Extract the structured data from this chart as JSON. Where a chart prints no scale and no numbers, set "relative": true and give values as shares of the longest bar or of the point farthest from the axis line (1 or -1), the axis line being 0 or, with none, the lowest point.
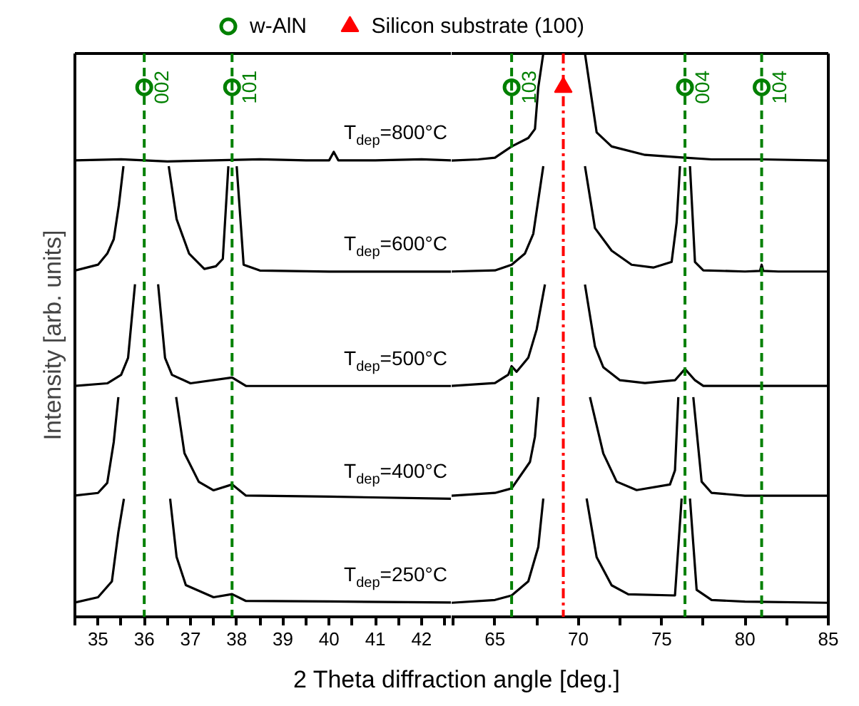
{
  "chart_data": [
    {
      "type": "line",
      "relative": true,
      "ylabel": "Intensity [arb. units]",
      "xlabel": "2 Theta diffraction angle [deg.]",
      "tick_labels": "x",
      "xlim": [
        34.5,
        42.65
      ],
      "xticks": [
        {
          "value": 34.5,
          "label": null
        },
        35,
        {
          "value": 35.5,
          "label": null
        },
        36,
        {
          "value": 36.5,
          "label": null
        },
        37,
        {
          "value": 37.5,
          "label": null
        },
        38,
        {
          "value": 38.5,
          "label": null
        },
        39,
        {
          "value": 39.5,
          "label": null
        },
        40,
        {
          "value": 40.5,
          "label": null
        },
        41,
        {
          "value": 41.5,
          "label": null
        },
        42,
        {
          "value": 42.5,
          "label": null
        }
      ],
      "series": [
        {
          "name": "T$_{dep}$=800°C",
          "color": "#000000",
          "x": [
            34.5,
            35.5,
            36.5,
            37.5,
            38.5,
            39.5,
            40.0,
            40.1,
            40.2,
            41.0,
            42.0,
            42.65
          ],
          "values": [
            0.862,
            0.864,
            0.86,
            0.862,
            0.864,
            0.862,
            0.862,
            0.878,
            0.862,
            0.862,
            0.864,
            0.862
          ]
        },
        {
          "name": "T$_{dep}$=600°C",
          "color": "#000000",
          "x": [
            34.5,
            35.0,
            35.2,
            35.34,
            35.45,
            35.55,
            36.0,
            36.53,
            36.7,
            36.97,
            37.3,
            37.55,
            37.7,
            37.82,
            37.9,
            38.0,
            38.15,
            38.5,
            40.0,
            42.65
          ],
          "values": [
            0.654,
            0.665,
            0.686,
            0.713,
            0.777,
            0.851,
            null,
            0.851,
            0.751,
            0.686,
            0.657,
            0.662,
            0.676,
            0.851,
            null,
            0.851,
            0.665,
            0.654,
            0.652,
            0.652
          ]
        },
        {
          "name": "T$_{dep}$=500°C",
          "color": "#000000",
          "x": [
            34.5,
            35.2,
            35.5,
            35.65,
            35.8,
            36.05,
            36.3,
            36.45,
            36.6,
            37.0,
            37.9,
            38.2,
            40.0,
            42.65
          ],
          "values": [
            0.436,
            0.441,
            0.457,
            0.489,
            0.628,
            null,
            0.628,
            0.489,
            0.457,
            0.441,
            0.452,
            0.436,
            0.436,
            0.436
          ]
        },
        {
          "name": "T$_{dep}$=400°C",
          "color": "#000000",
          "x": [
            34.5,
            35.0,
            35.2,
            35.34,
            35.44,
            36.0,
            36.69,
            36.87,
            37.18,
            37.5,
            37.9,
            38.2,
            40.0,
            42.65
          ],
          "values": [
            0.229,
            0.234,
            0.253,
            0.33,
            0.415,
            null,
            0.415,
            0.309,
            0.255,
            0.239,
            0.25,
            0.229,
            0.227,
            0.223
          ]
        },
        {
          "name": "T$_{dep}$=250°C",
          "color": "#000000",
          "x": [
            34.5,
            35.0,
            35.3,
            35.44,
            35.56,
            36.1,
            36.56,
            36.7,
            36.9,
            37.5,
            37.9,
            38.2,
            40.0,
            42.65
          ],
          "values": [
            0.027,
            0.037,
            0.067,
            0.16,
            0.223,
            null,
            0.223,
            0.113,
            0.06,
            0.037,
            0.043,
            0.03,
            0.029,
            0.027
          ]
        },
        {
          "type": "scatter",
          "marker": "circle",
          "color": "#008000",
          "x": [
            36.0,
            37.9
          ],
          "values": [
            1.0,
            1.0
          ]
        }
      ],
      "ref_lines": [
        {
          "axis": "x",
          "value": 36.0,
          "color": "#008000",
          "line_style": "dashed"
        },
        {
          "axis": "x",
          "value": 37.9,
          "color": "#008000",
          "line_style": "dashed"
        }
      ],
      "annotations": [
        {
          "text": "002",
          "x": 36.0,
          "y": 1.0
        },
        {
          "text": "101",
          "x": 37.9,
          "y": 1.0
        }
      ]
    },
    {
      "type": "line",
      "relative": true,
      "tick_labels": "x",
      "legend": "top",
      "xlim": [
        62.4,
        85
      ],
      "xticks": [
        {
          "value": 62.5,
          "label": null
        },
        65,
        {
          "value": 67.5,
          "label": null
        },
        70,
        {
          "value": 72.5,
          "label": null
        },
        75,
        {
          "value": 77.5,
          "label": null
        },
        80,
        {
          "value": 82.5,
          "label": null
        },
        85
      ],
      "series": [
        {
          "color": "#000000",
          "x": [
            62.4,
            64.0,
            65.0,
            66.0,
            67.0,
            67.4,
            67.6,
            67.9,
            69.1,
            70.4,
            71.1,
            72.0,
            74.0,
            76.4,
            78.0,
            81.0,
            85.0
          ],
          "values": [
            0.81,
            0.812,
            0.815,
            0.835,
            0.85,
            0.866,
            0.94,
            1.0,
            null,
            1.0,
            0.86,
            0.835,
            0.82,
            0.815,
            0.812,
            0.812,
            0.81
          ]
        },
        {
          "color": "#000000",
          "x": [
            62.4,
            65.0,
            66.0,
            66.8,
            67.3,
            67.6,
            67.9,
            69.1,
            70.4,
            71.0,
            72.0,
            73.2,
            74.5,
            75.6,
            75.9,
            76.1,
            76.4,
            76.7,
            77.0,
            77.5,
            80.0,
            80.9,
            81.0,
            81.1,
            82.0,
            85.0
          ],
          "values": [
            0.613,
            0.615,
            0.625,
            0.645,
            0.68,
            0.74,
            0.8,
            null,
            0.8,
            0.69,
            0.65,
            0.625,
            0.62,
            0.63,
            0.7,
            0.8,
            null,
            0.8,
            0.63,
            0.615,
            0.613,
            0.614,
            0.625,
            0.614,
            0.613,
            0.613
          ]
        },
        {
          "color": "#000000",
          "x": [
            62.4,
            65.0,
            65.8,
            66.0,
            66.3,
            67.0,
            67.5,
            68.0,
            69.1,
            70.4,
            71.0,
            71.5,
            72.5,
            74.0,
            75.8,
            76.4,
            77.0,
            77.5,
            80.0,
            85.0
          ],
          "values": [
            0.41,
            0.415,
            0.43,
            0.445,
            0.435,
            0.46,
            0.51,
            0.59,
            null,
            0.59,
            0.48,
            0.443,
            0.42,
            0.415,
            0.42,
            0.44,
            0.42,
            0.41,
            0.41,
            0.41
          ]
        },
        {
          "color": "#000000",
          "x": [
            62.4,
            65.0,
            66.0,
            67.1,
            67.4,
            67.6,
            69.1,
            70.7,
            71.5,
            72.3,
            73.5,
            75.5,
            75.8,
            76.0,
            76.5,
            76.9,
            77.4,
            78.0,
            80.0,
            85.0
          ],
          "values": [
            0.215,
            0.22,
            0.228,
            0.275,
            0.32,
            0.39,
            null,
            0.39,
            0.29,
            0.24,
            0.225,
            0.235,
            0.26,
            0.39,
            null,
            0.39,
            0.24,
            0.22,
            0.215,
            0.215
          ]
        },
        {
          "color": "#000000",
          "x": [
            62.4,
            65.0,
            66.0,
            67.0,
            67.6,
            67.9,
            69.1,
            70.5,
            71.1,
            72.0,
            73.0,
            75.8,
            76.2,
            76.45,
            76.7,
            77.1,
            78.0,
            80.0,
            85.0
          ],
          "values": [
            0.025,
            0.03,
            0.038,
            0.063,
            0.124,
            0.21,
            null,
            0.21,
            0.106,
            0.056,
            0.04,
            0.038,
            0.21,
            null,
            0.21,
            0.048,
            0.03,
            0.027,
            0.025
          ]
        },
        {
          "type": "scatter",
          "marker": "circle",
          "name": "w-AlN",
          "color": "#008000",
          "x": [
            66.0,
            76.4,
            81.0
          ],
          "values": [
            0.94,
            0.94,
            0.94
          ]
        },
        {
          "type": "scatter",
          "marker": "triangle",
          "name": "Silicon substrate (100)",
          "color": "#ff0000",
          "x": [
            69.1
          ],
          "values": [
            0.94
          ]
        }
      ],
      "ref_lines": [
        {
          "axis": "x",
          "value": 66.0,
          "color": "#008000",
          "line_style": "dashed"
        },
        {
          "axis": "x",
          "value": 69.1,
          "color": "#ff0000",
          "line_style": "dashdot"
        },
        {
          "axis": "x",
          "value": 76.4,
          "color": "#008000",
          "line_style": "dashed"
        },
        {
          "axis": "x",
          "value": 81.0,
          "color": "#008000",
          "line_style": "dashed"
        }
      ],
      "annotations": [
        {
          "text": "103",
          "x": 66.0,
          "y": 0.94
        },
        {
          "text": "004",
          "x": 76.4,
          "y": 0.94
        },
        {
          "text": "104",
          "x": 81.0,
          "y": 0.94
        }
      ]
    }
  ]
}
